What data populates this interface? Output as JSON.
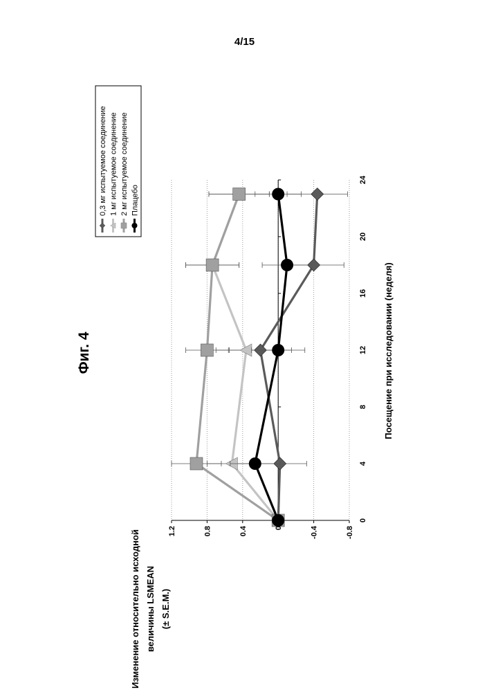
{
  "page_number": "4/15",
  "figure_label": "Фиг. 4",
  "colors": {
    "series_0": "#5a5a5a",
    "series_1": "#c4c4c4",
    "series_2": "#a0a0a0",
    "series_3": "#000000",
    "grid": "#999999",
    "axis": "#000000"
  },
  "chart_data": {
    "type": "line",
    "orientation": "rotated-90-ccw",
    "title": "",
    "xlabel": "Посещение при исследовании (неделя)",
    "ylabel_lines": [
      "Изменение относительно исходной",
      "величины LSMEAN",
      "(± S.E.M.)"
    ],
    "xlim": [
      0,
      24
    ],
    "ylim": [
      -0.8,
      1.2
    ],
    "x_ticks": [
      0,
      4,
      8,
      12,
      16,
      20,
      24
    ],
    "x_tick_labels": [
      "0",
      "4",
      "8",
      "12",
      "16",
      "20",
      "24"
    ],
    "y_ticks": [
      -0.8,
      -0.4,
      0,
      0.4,
      0.8,
      1.2
    ],
    "y_tick_labels": [
      "-0.8",
      "-0.4",
      "0",
      "0.4",
      "0.8",
      "1.2"
    ],
    "grid_y": true,
    "legend_position": "top-left",
    "series": [
      {
        "name": "0,3 мг испытуемое соединение",
        "marker": "diamond",
        "color_key": "series_0",
        "x": [
          0,
          4,
          12,
          18,
          23
        ],
        "y": [
          0,
          -0.02,
          0.2,
          -0.4,
          -0.44
        ],
        "err": [
          0,
          0.3,
          0.35,
          0.34,
          0.34
        ]
      },
      {
        "name": "1 мг испытуемое соединение",
        "marker": "triangle",
        "color_key": "series_1",
        "x": [
          0,
          4,
          12,
          18,
          23
        ],
        "y": [
          0,
          0.52,
          0.36,
          0.74,
          0.44
        ],
        "err": [
          0,
          0.28,
          0.34,
          0.3,
          0.34
        ]
      },
      {
        "name": "2 мг испытуемое соединение",
        "marker": "square",
        "color_key": "series_2",
        "x": [
          0,
          4,
          12,
          18,
          23
        ],
        "y": [
          0,
          0.92,
          0.8,
          0.74,
          0.44
        ],
        "err": [
          0,
          0.28,
          0.24,
          0.3,
          0.34
        ]
      },
      {
        "name": "Плацебо",
        "marker": "circle",
        "color_key": "series_3",
        "x": [
          0,
          4,
          12,
          18,
          23
        ],
        "y": [
          0,
          0.26,
          0,
          -0.1,
          0
        ],
        "err": [
          0,
          0.28,
          0.3,
          0.28,
          0.26
        ]
      }
    ]
  }
}
